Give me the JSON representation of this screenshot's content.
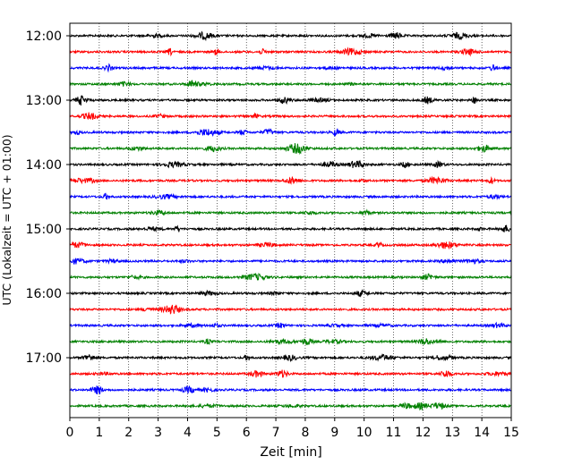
{
  "chart_data": {
    "type": "line",
    "xlabel": "Zeit  [min]",
    "ylabel": "UTC (Lokalzeit = UTC + 01:00)",
    "xlim": [
      0,
      15
    ],
    "x_ticks": [
      0,
      1,
      2,
      3,
      4,
      5,
      6,
      7,
      8,
      9,
      10,
      11,
      12,
      13,
      14,
      15
    ],
    "y_tick_labels": [
      "12:00",
      "13:00",
      "14:00",
      "15:00",
      "16:00",
      "17:00"
    ],
    "grid": "vertical dotted",
    "trace_interval_minutes": 15,
    "series": [
      {
        "start": "12:00",
        "color": "#000000"
      },
      {
        "start": "12:15",
        "color": "#ff0000"
      },
      {
        "start": "12:30",
        "color": "#0000ff"
      },
      {
        "start": "12:45",
        "color": "#008000"
      },
      {
        "start": "13:00",
        "color": "#000000"
      },
      {
        "start": "13:15",
        "color": "#ff0000"
      },
      {
        "start": "13:30",
        "color": "#0000ff"
      },
      {
        "start": "13:45",
        "color": "#008000"
      },
      {
        "start": "14:00",
        "color": "#000000"
      },
      {
        "start": "14:15",
        "color": "#ff0000"
      },
      {
        "start": "14:30",
        "color": "#0000ff"
      },
      {
        "start": "14:45",
        "color": "#008000"
      },
      {
        "start": "15:00",
        "color": "#000000"
      },
      {
        "start": "15:15",
        "color": "#ff0000"
      },
      {
        "start": "15:30",
        "color": "#0000ff"
      },
      {
        "start": "15:45",
        "color": "#008000"
      },
      {
        "start": "16:00",
        "color": "#000000"
      },
      {
        "start": "16:15",
        "color": "#ff0000"
      },
      {
        "start": "16:30",
        "color": "#0000ff"
      },
      {
        "start": "16:45",
        "color": "#008000"
      },
      {
        "start": "17:00",
        "color": "#000000"
      },
      {
        "start": "17:15",
        "color": "#ff0000"
      },
      {
        "start": "17:30",
        "color": "#0000ff"
      },
      {
        "start": "17:45",
        "color": "#008000"
      }
    ]
  }
}
